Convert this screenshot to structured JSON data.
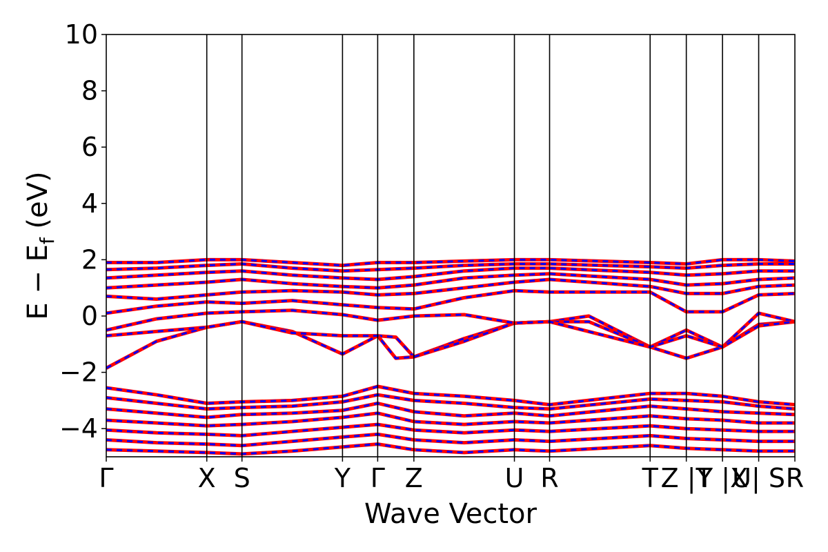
{
  "chart_data": {
    "type": "line",
    "xlabel": "Wave Vector",
    "ylabel": "E − E",
    "ylabel_sub": "f",
    "ylabel_unit": " (eV)",
    "ylim": [
      -5,
      10
    ],
    "yticks": [
      -4,
      -2,
      0,
      2,
      4,
      6,
      8,
      10
    ],
    "ytick_labels": [
      "−4",
      "−2",
      "0",
      "2",
      "4",
      "6",
      "8",
      "10"
    ],
    "grid": false,
    "kpath": [
      {
        "label": "Γ",
        "x": 0.0
      },
      {
        "label": "X",
        "x": 1.0
      },
      {
        "label": "S",
        "x": 1.35
      },
      {
        "label": "Y",
        "x": 2.35
      },
      {
        "label": "Γ",
        "x": 2.7
      },
      {
        "label": "Z",
        "x": 3.06
      },
      {
        "label": "U",
        "x": 4.06
      },
      {
        "label": "R",
        "x": 4.41
      },
      {
        "label": "T",
        "x": 5.41
      },
      {
        "label": "Z |T",
        "x": 5.77
      },
      {
        "label": "Y |X",
        "x": 6.13
      },
      {
        "label": "U| S",
        "x": 6.49
      },
      {
        "label": "R",
        "x": 6.85
      }
    ],
    "series_styles": [
      {
        "name": "",
        "color": "#ff0000",
        "style": "solid"
      },
      {
        "name": "",
        "color": "#0000ff",
        "style": "dashed"
      }
    ],
    "bands": [
      {
        "x": [
          0.0,
          0.5,
          1.0,
          1.35,
          1.85,
          2.35,
          2.7,
          2.88,
          3.06,
          3.56,
          4.06,
          4.41,
          4.8,
          5.41,
          5.77,
          6.13,
          6.49,
          6.85
        ],
        "y": [
          -1.85,
          -0.9,
          -0.4,
          -0.2,
          -0.55,
          -1.35,
          -0.7,
          -0.75,
          -1.45,
          -0.8,
          -0.25,
          -0.2,
          0.0,
          -1.1,
          -1.5,
          -1.1,
          -0.3,
          -0.2
        ]
      },
      {
        "x": [
          0.0,
          0.5,
          1.0,
          1.35,
          1.85,
          2.35,
          2.7,
          2.88,
          3.06,
          3.56,
          4.06,
          4.41,
          4.8,
          5.41,
          5.77,
          6.13,
          6.49,
          6.85
        ],
        "y": [
          -0.7,
          -0.55,
          -0.4,
          -0.2,
          -0.6,
          -0.7,
          -0.7,
          -1.5,
          -1.45,
          -0.9,
          -0.25,
          -0.2,
          -0.2,
          -1.1,
          -0.5,
          -1.1,
          0.1,
          -0.2
        ]
      },
      {
        "x": [
          0.0,
          0.5,
          1.0,
          1.35,
          1.85,
          2.35,
          2.7,
          3.06,
          3.56,
          4.06,
          4.41,
          5.41,
          5.77,
          6.13,
          6.49,
          6.85
        ],
        "y": [
          -0.5,
          -0.1,
          0.1,
          0.15,
          0.2,
          0.05,
          -0.15,
          0.0,
          0.05,
          -0.25,
          -0.2,
          -1.1,
          -0.7,
          -1.1,
          -0.35,
          -0.2
        ]
      },
      {
        "x": [
          0.0,
          0.5,
          1.0,
          1.35,
          1.85,
          2.35,
          2.7,
          3.06,
          3.56,
          4.06,
          4.41,
          5.41,
          5.77,
          6.13,
          6.49,
          6.85
        ],
        "y": [
          0.1,
          0.35,
          0.5,
          0.45,
          0.55,
          0.4,
          0.3,
          0.25,
          0.65,
          0.9,
          0.85,
          0.85,
          0.15,
          0.15,
          0.75,
          0.8
        ]
      },
      {
        "x": [
          0.0,
          0.5,
          1.0,
          1.35,
          1.85,
          2.35,
          2.7,
          3.06,
          3.56,
          4.06,
          4.41,
          5.41,
          5.77,
          6.13,
          6.49,
          6.85
        ],
        "y": [
          0.7,
          0.6,
          0.75,
          0.85,
          0.9,
          0.85,
          0.75,
          0.8,
          1.0,
          1.2,
          1.3,
          1.05,
          0.8,
          0.8,
          1.05,
          1.1
        ]
      },
      {
        "x": [
          0.0,
          0.5,
          1.0,
          1.35,
          1.85,
          2.35,
          2.7,
          3.06,
          3.56,
          4.06,
          4.41,
          5.41,
          5.77,
          6.13,
          6.49,
          6.85
        ],
        "y": [
          1.0,
          1.1,
          1.2,
          1.3,
          1.15,
          1.05,
          1.0,
          1.1,
          1.35,
          1.45,
          1.5,
          1.3,
          1.1,
          1.15,
          1.3,
          1.35
        ]
      },
      {
        "x": [
          0.0,
          0.5,
          1.0,
          1.35,
          1.85,
          2.35,
          2.7,
          3.06,
          3.56,
          4.06,
          4.41,
          5.41,
          5.77,
          6.13,
          6.49,
          6.85
        ],
        "y": [
          1.35,
          1.45,
          1.55,
          1.6,
          1.45,
          1.35,
          1.3,
          1.4,
          1.6,
          1.7,
          1.7,
          1.55,
          1.45,
          1.5,
          1.6,
          1.6
        ]
      },
      {
        "x": [
          0.0,
          0.5,
          1.0,
          1.35,
          1.85,
          2.35,
          2.7,
          3.06,
          3.56,
          4.06,
          4.41,
          5.41,
          5.77,
          6.13,
          6.49,
          6.85
        ],
        "y": [
          1.65,
          1.7,
          1.8,
          1.85,
          1.7,
          1.6,
          1.65,
          1.7,
          1.8,
          1.85,
          1.85,
          1.75,
          1.7,
          1.8,
          1.85,
          1.85
        ]
      },
      {
        "x": [
          0.0,
          0.5,
          1.0,
          1.35,
          1.85,
          2.35,
          2.7,
          3.06,
          3.56,
          4.06,
          4.41,
          5.41,
          5.77,
          6.13,
          6.49,
          6.85
        ],
        "y": [
          1.9,
          1.9,
          2.0,
          2.0,
          1.9,
          1.8,
          1.9,
          1.9,
          1.95,
          2.0,
          2.0,
          1.9,
          1.85,
          2.0,
          2.0,
          1.95
        ]
      },
      {
        "x": [
          0.0,
          0.5,
          1.0,
          1.35,
          1.85,
          2.35,
          2.7,
          3.06,
          3.56,
          4.06,
          4.41,
          5.41,
          5.77,
          6.13,
          6.49,
          6.85
        ],
        "y": [
          -2.55,
          -2.8,
          -3.1,
          -3.05,
          -3.0,
          -2.85,
          -2.5,
          -2.75,
          -2.85,
          -3.0,
          -3.15,
          -2.75,
          -2.75,
          -2.85,
          -3.05,
          -3.15
        ]
      },
      {
        "x": [
          0.0,
          0.5,
          1.0,
          1.35,
          1.85,
          2.35,
          2.7,
          3.06,
          3.56,
          4.06,
          4.41,
          5.41,
          5.77,
          6.13,
          6.49,
          6.85
        ],
        "y": [
          -2.9,
          -3.1,
          -3.3,
          -3.25,
          -3.2,
          -3.05,
          -2.8,
          -3.0,
          -3.1,
          -3.25,
          -3.3,
          -2.95,
          -3.0,
          -3.05,
          -3.2,
          -3.3
        ]
      },
      {
        "x": [
          0.0,
          0.5,
          1.0,
          1.35,
          1.85,
          2.35,
          2.7,
          3.06,
          3.56,
          4.06,
          4.41,
          5.41,
          5.77,
          6.13,
          6.49,
          6.85
        ],
        "y": [
          -3.3,
          -3.45,
          -3.6,
          -3.5,
          -3.45,
          -3.35,
          -3.1,
          -3.4,
          -3.55,
          -3.45,
          -3.55,
          -3.2,
          -3.3,
          -3.4,
          -3.45,
          -3.5
        ]
      },
      {
        "x": [
          0.0,
          0.5,
          1.0,
          1.35,
          1.85,
          2.35,
          2.7,
          3.06,
          3.56,
          4.06,
          4.41,
          5.41,
          5.77,
          6.13,
          6.49,
          6.85
        ],
        "y": [
          -3.7,
          -3.8,
          -3.9,
          -3.85,
          -3.75,
          -3.6,
          -3.45,
          -3.75,
          -3.85,
          -3.75,
          -3.8,
          -3.55,
          -3.65,
          -3.7,
          -3.8,
          -3.8
        ]
      },
      {
        "x": [
          0.0,
          0.5,
          1.0,
          1.35,
          1.85,
          2.35,
          2.7,
          3.06,
          3.56,
          4.06,
          4.41,
          5.41,
          5.77,
          6.13,
          6.49,
          6.85
        ],
        "y": [
          -4.05,
          -4.15,
          -4.2,
          -4.25,
          -4.1,
          -3.95,
          -3.85,
          -4.05,
          -4.15,
          -4.05,
          -4.1,
          -3.9,
          -4.0,
          -4.05,
          -4.1,
          -4.1
        ]
      },
      {
        "x": [
          0.0,
          0.5,
          1.0,
          1.35,
          1.85,
          2.35,
          2.7,
          3.06,
          3.56,
          4.06,
          4.41,
          5.41,
          5.77,
          6.13,
          6.49,
          6.85
        ],
        "y": [
          -4.4,
          -4.5,
          -4.55,
          -4.6,
          -4.45,
          -4.3,
          -4.2,
          -4.4,
          -4.5,
          -4.4,
          -4.45,
          -4.25,
          -4.35,
          -4.4,
          -4.45,
          -4.45
        ]
      },
      {
        "x": [
          0.0,
          0.5,
          1.0,
          1.35,
          1.85,
          2.35,
          2.7,
          3.06,
          3.56,
          4.06,
          4.41,
          5.41,
          5.77,
          6.13,
          6.49,
          6.85
        ],
        "y": [
          -4.75,
          -4.8,
          -4.85,
          -4.9,
          -4.8,
          -4.65,
          -4.55,
          -4.75,
          -4.85,
          -4.75,
          -4.8,
          -4.6,
          -4.7,
          -4.75,
          -4.8,
          -4.8
        ]
      }
    ]
  }
}
